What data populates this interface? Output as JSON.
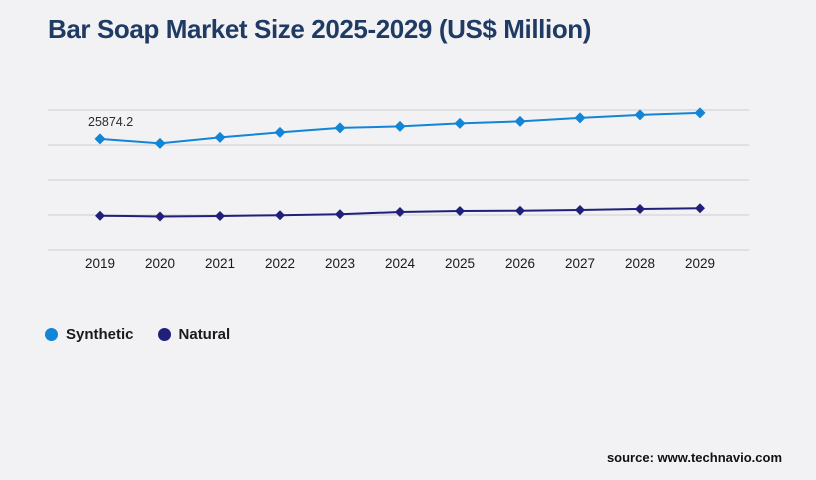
{
  "background": "#f2f2f4",
  "title": {
    "text": "Bar Soap Market Size 2025-2029 (US$ Million)",
    "color": "#1f3a63"
  },
  "source": {
    "text": "source: www.technavio.com"
  },
  "legend": {
    "position": "bottom-left",
    "items": [
      {
        "label": "Synthetic",
        "color": "#1385d6"
      },
      {
        "label": "Natural",
        "color": "#20207a"
      }
    ]
  },
  "chart_data": {
    "type": "line",
    "title": "Bar Soap Market Size 2025-2029 (US$ Million)",
    "categories": [
      "2019",
      "2020",
      "2021",
      "2022",
      "2023",
      "2024",
      "2025",
      "2026",
      "2027",
      "2028",
      "2029"
    ],
    "series": [
      {
        "name": "Synthetic",
        "color": "#1385d6",
        "marker": "diamond",
        "values": [
          25874.2,
          25230,
          26090,
          26800,
          27450,
          27660,
          28090,
          28370,
          28870,
          29300,
          29590
        ]
      },
      {
        "name": "Natural",
        "color": "#20207a",
        "marker": "diamond",
        "values": [
          14900,
          14790,
          14860,
          14970,
          15100,
          15430,
          15570,
          15610,
          15710,
          15860,
          15960
        ]
      }
    ],
    "data_labels": [
      {
        "series": "Synthetic",
        "category": "2019",
        "text": "25874.2"
      }
    ],
    "xlabel": "",
    "ylabel": "",
    "ylim": [
      10000,
      30000
    ],
    "gridline_values": [
      30000,
      25000,
      20000,
      15000,
      10000
    ],
    "grid": true,
    "gridline_color": "#cfcfd2",
    "axis_label_color": "#1a1a1a",
    "data_label_color": "#2b2b2b",
    "legend_position": "bottom-left"
  }
}
